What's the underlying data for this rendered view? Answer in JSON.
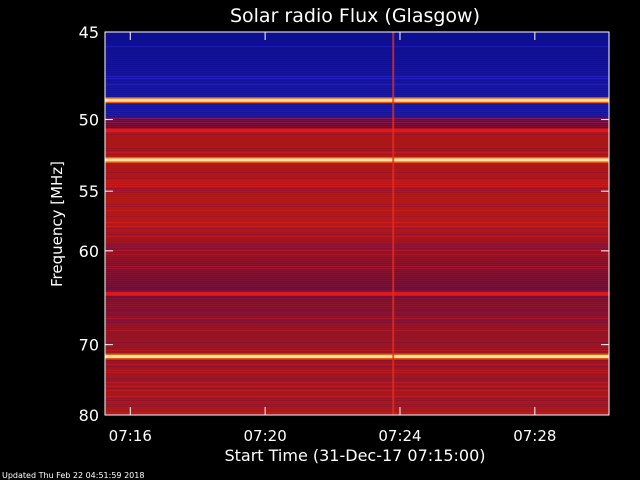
{
  "chart_data": {
    "type": "heatmap",
    "title": "Solar radio Flux (Glasgow)",
    "xlabel": "Start Time (31-Dec-17 07:15:00)",
    "ylabel": "Frequency [MHz]",
    "x_ticks": [
      "07:16",
      "07:20",
      "07:24",
      "07:28"
    ],
    "x_tick_minutes": [
      16,
      20,
      24,
      28
    ],
    "xlim_minutes": [
      15.25,
      30.2
    ],
    "y_ticks": [
      45,
      50,
      55,
      60,
      70,
      80
    ],
    "ylim": [
      45,
      80
    ],
    "y_scale": "reciprocal",
    "features": {
      "bright_bands_mhz": [
        48.8,
        52.7,
        71.5
      ],
      "strong_red_bands_mhz": [
        50.7,
        64.2
      ],
      "vertical_line_minute": 23.8
    },
    "colors": {
      "low": "#0a0a8c",
      "mid": "#c81414",
      "high": "#ffe6a0"
    }
  },
  "footer": {
    "updated": "Updated Thu Feb 22 04:51:59 2018"
  }
}
